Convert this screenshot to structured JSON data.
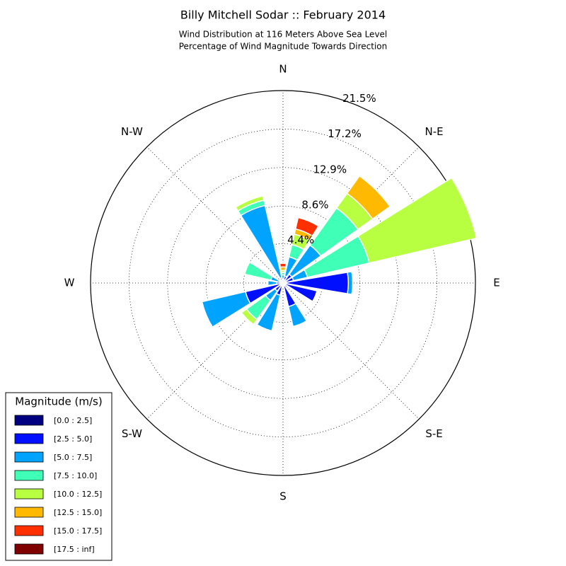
{
  "chart_data": {
    "type": "windrose",
    "title": "Billy Mitchell Sodar :: February 2014",
    "subtitle": [
      "Wind Distribution at 116 Meters Above Sea Level",
      "Percentage of Wind Magnitude Towards Direction"
    ],
    "x": [
      0,
      22.5,
      45,
      67.5,
      90,
      112.5,
      135,
      157.5,
      180,
      202.5,
      225,
      247.5,
      270,
      292.5,
      315,
      337.5
    ],
    "xticks": [
      {
        "value": 0,
        "label": "N"
      },
      {
        "value": 45,
        "label": "N-E"
      },
      {
        "value": 90,
        "label": "E"
      },
      {
        "value": 135,
        "label": "S-E"
      },
      {
        "value": 180,
        "label": "S"
      },
      {
        "value": 225,
        "label": "S-W"
      },
      {
        "value": 270,
        "label": "W"
      },
      {
        "value": 315,
        "label": "N-W"
      }
    ],
    "ylim": [
      0,
      21.5
    ],
    "yticks": [
      {
        "value": 4.4,
        "label": "4.4%"
      },
      {
        "value": 8.6,
        "label": "8.6%"
      },
      {
        "value": 12.9,
        "label": "12.9%"
      },
      {
        "value": 17.2,
        "label": "17.2%"
      },
      {
        "value": 21.5,
        "label": "21.5%"
      }
    ],
    "grid": true,
    "legend_title": "Magnitude (m/s)",
    "legend_position": "lower left",
    "series": [
      {
        "name": "[0.0 : 2.5]",
        "color": "#000080",
        "values": [
          0.1,
          0.1,
          0.1,
          0.1,
          0.2,
          0.1,
          0.2,
          0.1,
          0.1,
          0.1,
          0.1,
          0.1,
          0.1,
          0.1,
          0.1,
          0.1
        ]
      },
      {
        "name": "[2.5 : 5.0]",
        "color": "#0010ff",
        "values": [
          0.3,
          0.7,
          1.1,
          1.1,
          7.1,
          3.8,
          0.4,
          2.6,
          0.4,
          1.3,
          1.0,
          4.2,
          0.6,
          0.3,
          0.3,
          0.5
        ]
      },
      {
        "name": "[5.0 : 7.5]",
        "color": "#00a4ff",
        "values": [
          0.5,
          2.2,
          4.0,
          1.6,
          0.5,
          0,
          0,
          2.3,
          0,
          4.1,
          1.3,
          5.0,
          1.0,
          1.0,
          0,
          8.3
        ]
      },
      {
        "name": "[7.5 : 10.0]",
        "color": "#40ffb7",
        "values": [
          0.3,
          1.4,
          5.1,
          7.1,
          0,
          0,
          0,
          0,
          0,
          0,
          2.6,
          0,
          0,
          3.0,
          0,
          0.6
        ]
      },
      {
        "name": "[10.0 : 12.5]",
        "color": "#b7ff40",
        "values": [
          0.2,
          1.2,
          2.0,
          12.3,
          0,
          0,
          0,
          0,
          0,
          0,
          0.7,
          0,
          0,
          0,
          0,
          0.5
        ]
      },
      {
        "name": "[12.5 : 15.0]",
        "color": "#ffb900",
        "values": [
          0.4,
          0.6,
          2.4,
          0,
          0,
          0,
          0,
          0,
          0,
          0,
          0,
          0,
          0,
          0,
          0,
          0
        ]
      },
      {
        "name": "[15.0 : 17.5]",
        "color": "#ff3000",
        "values": [
          0.4,
          1.3,
          0,
          0,
          0,
          0,
          0,
          0,
          0,
          0,
          0,
          0,
          0,
          0,
          0,
          0
        ]
      },
      {
        "name": "[17.5 : inf]",
        "color": "#800000",
        "values": [
          0,
          0,
          0,
          0,
          0,
          0,
          0,
          0,
          0,
          0,
          0,
          0,
          0,
          0,
          0,
          0
        ]
      }
    ]
  }
}
